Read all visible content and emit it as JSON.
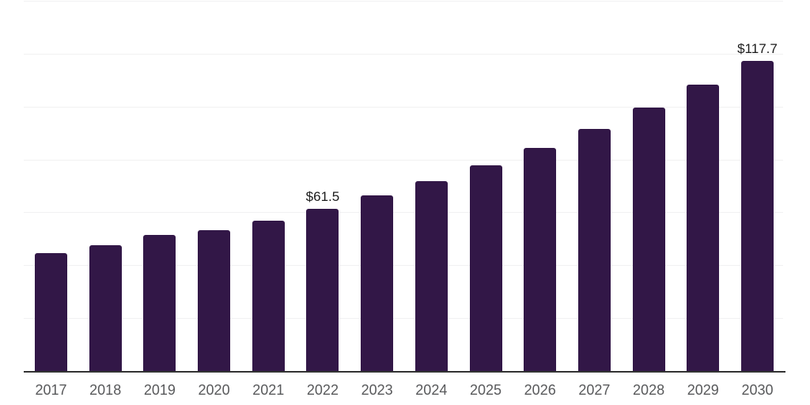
{
  "chart_data": {
    "type": "bar",
    "title": "",
    "xlabel": "",
    "ylabel": "",
    "categories": [
      "2017",
      "2018",
      "2019",
      "2020",
      "2021",
      "2022",
      "2023",
      "2024",
      "2025",
      "2026",
      "2027",
      "2028",
      "2029",
      "2030"
    ],
    "values": [
      44.8,
      47.9,
      51.8,
      53.6,
      57.1,
      61.5,
      66.6,
      72.2,
      78.2,
      84.7,
      91.9,
      99.9,
      108.5,
      117.7
    ],
    "annotations": [
      {
        "category": "2022",
        "label": "$61.5"
      },
      {
        "category": "2030",
        "label": "$117.7"
      }
    ],
    "ylim": [
      0,
      140
    ],
    "y_gridline_step": 20,
    "grid": true,
    "legend": false,
    "y_axis_labels_visible": false,
    "colors": {
      "bar": "#321747",
      "axis_line": "#333333",
      "gridline": "#f1f1f2",
      "tick_label": "#58595b",
      "data_label": "#1b1b1b",
      "background": "#ffffff"
    }
  }
}
